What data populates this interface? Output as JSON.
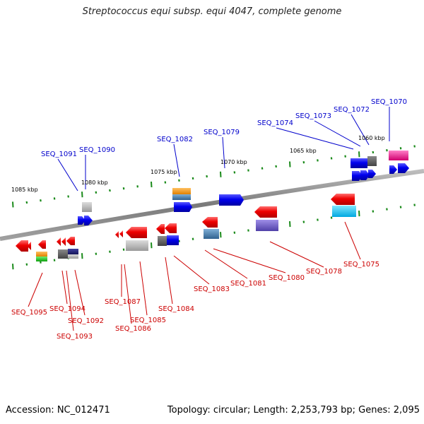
{
  "title": "Streptococcus equi subsp. equi 4047, complete genome",
  "accession": "Accession: NC_012471",
  "summary": "Topology: circular; Length: 2,253,793 bp; Genes: 2,095",
  "colors": {
    "forward_label": "#0000cc",
    "reverse_label": "#cc0000",
    "backbone": "#8c8c8c",
    "ticks": "#1a8a1a"
  },
  "kbp_markers": [
    "1085 kbp",
    "1080 kbp",
    "1075 kbp",
    "1070 kbp",
    "1065 kbp",
    "1060 kbp"
  ],
  "forward_labels": [
    "SEQ_1091",
    "SEQ_1090",
    "SEQ_1082",
    "SEQ_1079",
    "SEQ_1074",
    "SEQ_1073",
    "SEQ_1072",
    "SEQ_1070"
  ],
  "reverse_labels": [
    "SEQ_1095",
    "SEQ_1094",
    "SEQ_1092",
    "SEQ_1093",
    "SEQ_1087",
    "SEQ_1086",
    "SEQ_1085",
    "SEQ_1084",
    "SEQ_1083",
    "SEQ_1081",
    "SEQ_1080",
    "SEQ_1078",
    "SEQ_1075"
  ]
}
